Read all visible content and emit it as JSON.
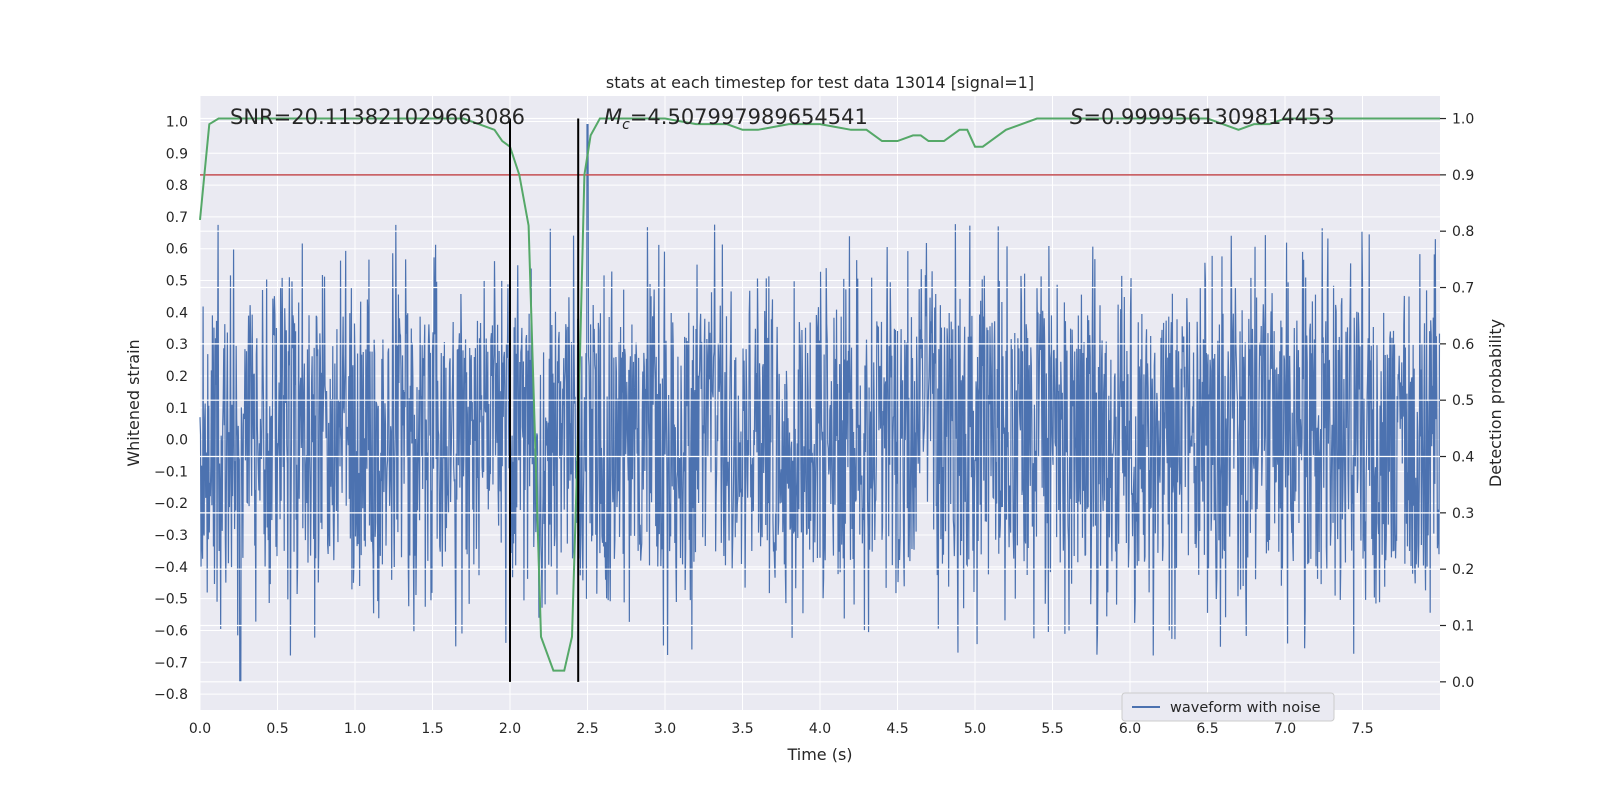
{
  "chart_data": {
    "type": "line",
    "title": "stats at each timestep for test data 13014 [signal=1]",
    "xlabel": "Time (s)",
    "ylabel_left": "Whitened strain",
    "ylabel_right": "Detection probability",
    "xlim": [
      0.0,
      8.0
    ],
    "ylim_left": [
      -0.85,
      1.08
    ],
    "ylim_right": [
      -0.05,
      1.04
    ],
    "xticks": [
      0.0,
      0.5,
      1.0,
      1.5,
      2.0,
      2.5,
      3.0,
      3.5,
      4.0,
      4.5,
      5.0,
      5.5,
      6.0,
      6.5,
      7.0,
      7.5
    ],
    "xtick_labels": [
      "0.0",
      "0.5",
      "1.0",
      "1.5",
      "2.0",
      "2.5",
      "3.0",
      "3.5",
      "4.0",
      "4.5",
      "5.0",
      "5.5",
      "6.0",
      "6.5",
      "7.0",
      "7.5"
    ],
    "yticks_left": [
      1.0,
      0.9,
      0.8,
      0.7,
      0.6,
      0.5,
      0.4,
      0.3,
      0.2,
      0.1,
      0.0,
      -0.1,
      -0.2,
      -0.3,
      -0.4,
      -0.5,
      -0.6,
      -0.7,
      -0.8
    ],
    "ytick_labels_left": [
      "1.0",
      "0.9",
      "0.8",
      "0.7",
      "0.6",
      "0.5",
      "0.4",
      "0.3",
      "0.2",
      "0.1",
      "0.0",
      "−0.1",
      "−0.2",
      "−0.3",
      "−0.4",
      "−0.5",
      "−0.6",
      "−0.7",
      "−0.8"
    ],
    "yticks_right": [
      1.0,
      0.9,
      0.8,
      0.7,
      0.6,
      0.5,
      0.4,
      0.3,
      0.2,
      0.1,
      0.0
    ],
    "ytick_labels_right": [
      "1.0",
      "0.9",
      "0.8",
      "0.7",
      "0.6",
      "0.5",
      "0.4",
      "0.3",
      "0.2",
      "0.1",
      "0.0"
    ],
    "grid": true,
    "annotations": {
      "snr": "SNR=20.113821029663086",
      "mc_symbol": "M",
      "mc_subscript": "c",
      "mc_value": "=4.507997989654541",
      "s_symbol": "S",
      "s_value": "=0.9999561309814453"
    },
    "vertical_lines_x": [
      2.0,
      2.44
    ],
    "threshold_right": 0.9,
    "waveform": {
      "name": "waveform with noise",
      "color": "#4c72b0",
      "band_core": [
        -0.23,
        0.29
      ],
      "typical_peak_amplitude": [
        0.3,
        0.68
      ],
      "max": 0.99,
      "max_at_x": 2.5,
      "min": -0.76,
      "min_at_x": 0.26
    },
    "probability_series": {
      "color": "#55a868",
      "x": [
        0.0,
        0.06,
        0.12,
        0.3,
        0.6,
        1.0,
        1.3,
        1.5,
        1.7,
        1.8,
        1.9,
        1.95,
        2.0,
        2.06,
        2.12,
        2.2,
        2.28,
        2.35,
        2.4,
        2.44,
        2.48,
        2.52,
        2.58,
        2.7,
        3.0,
        3.2,
        3.4,
        3.5,
        3.6,
        3.8,
        4.0,
        4.2,
        4.3,
        4.4,
        4.5,
        4.6,
        4.65,
        4.7,
        4.8,
        4.9,
        4.95,
        5.0,
        5.05,
        5.1,
        5.2,
        5.4,
        5.6,
        5.8,
        6.0,
        6.2,
        6.4,
        6.5,
        6.6,
        6.7,
        6.8,
        6.9,
        7.0,
        7.2,
        7.4,
        7.6,
        7.8,
        8.0
      ],
      "y": [
        0.82,
        0.99,
        1.0,
        1.0,
        1.0,
        1.0,
        1.0,
        1.0,
        1.0,
        0.99,
        0.98,
        0.96,
        0.95,
        0.9,
        0.81,
        0.08,
        0.02,
        0.02,
        0.08,
        0.45,
        0.9,
        0.97,
        1.0,
        1.0,
        1.0,
        0.99,
        0.99,
        0.98,
        0.98,
        0.99,
        0.99,
        0.98,
        0.98,
        0.96,
        0.96,
        0.97,
        0.97,
        0.96,
        0.96,
        0.98,
        0.98,
        0.95,
        0.95,
        0.96,
        0.98,
        1.0,
        1.0,
        1.0,
        1.0,
        1.0,
        1.0,
        1.0,
        0.99,
        0.98,
        0.99,
        0.99,
        1.0,
        1.0,
        1.0,
        1.0,
        1.0,
        1.0
      ]
    },
    "legend": {
      "label": "waveform with noise",
      "placement": "lower right"
    },
    "colors": {
      "background": "#eaeaf2",
      "grid": "#ffffff",
      "threshold": "#c44e52",
      "vline": "#000000"
    }
  }
}
